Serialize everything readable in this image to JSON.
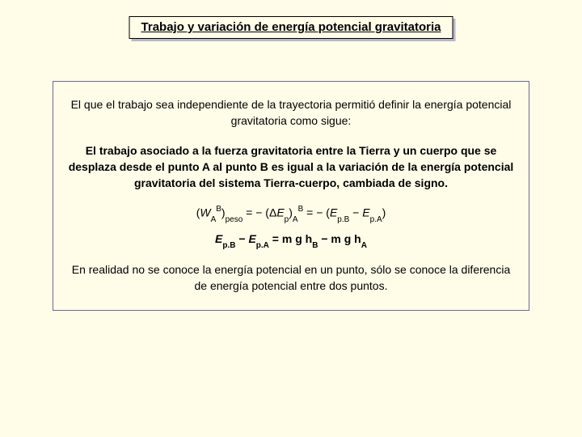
{
  "colors": {
    "background": "#fffce8",
    "title_shadow": "#b7b7c9",
    "box_border": "#6b6b99",
    "text": "#000000"
  },
  "title": "Trabajo y variación de energía potencial gravitatoria",
  "intro": "El que el trabajo sea independiente de la trayectoria permitió definir la energía potencial gravitatoria como sigue:",
  "definition": "El trabajo asociado a la fuerza gravitatoria entre la Tierra y un cuerpo que se desplaza desde el punto A al punto B es igual a la variación de la energía potencial gravitatoria del sistema Tierra-cuerpo, cambiada de signo.",
  "formula1_parts": {
    "p1": "(",
    "W": "W",
    "A1": "A",
    "B1": "B",
    "p2": ")",
    "peso": "peso",
    "eq1": " = − (Δ",
    "Ep": "E",
    "psub": "p",
    "p3": ")",
    "A2": "A",
    "B2": "B",
    "eq2": " = − (",
    "EpB": "E",
    "pB": "p.B",
    "minus": " − ",
    "EpA": "E",
    "pA": "p.A",
    "p4": ")"
  },
  "formula2_parts": {
    "E1": "E",
    "pB": "p.B",
    "minus1": " − ",
    "E2": "E",
    "pA": "p.A",
    "eq": " = m g h",
    "B": "B",
    "minus2": " − m g h",
    "A": "A"
  },
  "closing": "En realidad no se conoce la energía potencial en un punto, sólo se conoce la diferencia de energía potencial entre dos puntos."
}
